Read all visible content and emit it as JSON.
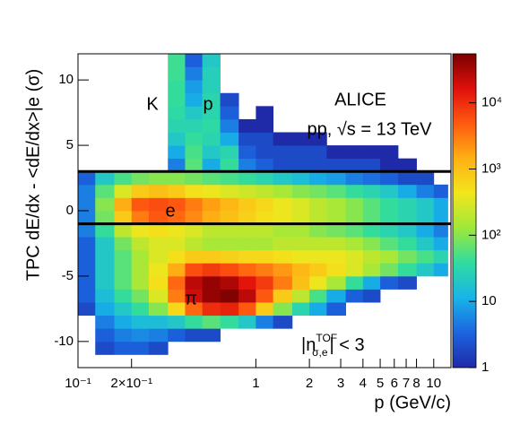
{
  "chart_data": {
    "type": "heatmap",
    "xlabel": "p (GeV/c)",
    "ylabel": "TPC dE/dx - <dE/dx>|e (σ)",
    "xscale": "log",
    "xlim": [
      0.1,
      12.5
    ],
    "xticks": [
      {
        "value": 0.1,
        "label": "10⁻¹"
      },
      {
        "value": 0.2,
        "label": "2×10⁻¹"
      },
      1,
      2,
      3,
      4,
      5,
      6,
      7,
      8,
      10
    ],
    "ylim": [
      -12,
      12
    ],
    "yticks": [
      -10,
      -5,
      0,
      5,
      10
    ],
    "zscale": "log",
    "zlim": [
      1,
      55000
    ],
    "zticks": [
      1,
      10,
      {
        "value": 100,
        "label": "10²"
      },
      {
        "value": 1000,
        "label": "10³"
      },
      {
        "value": 10000,
        "label": "10⁴"
      }
    ],
    "colorscale": [
      "#1f2aa8",
      "#1c64e0",
      "#18b4e8",
      "#2fdca0",
      "#9ee83a",
      "#f2e61c",
      "#ffb014",
      "#ff5a10",
      "#e0100c",
      "#7a0000"
    ],
    "hlines": [
      3,
      -1
    ],
    "annotations": {
      "experiment": "ALICE",
      "system": "pp, √s = 13 TeV",
      "kaon": "K",
      "proton": "p",
      "electron": "e",
      "pion": "π",
      "tof_cut": [
        "|n",
        "TOF",
        "σ,e",
        "| < 3"
      ]
    },
    "xbins": [
      0.1,
      0.125,
      0.16,
      0.2,
      0.25,
      0.32,
      0.4,
      0.5,
      0.63,
      0.8,
      1,
      1.25,
      1.6,
      2,
      2.5,
      3.2,
      4,
      5,
      6.3,
      8,
      10,
      12
    ],
    "ybins": [
      -12,
      -11,
      -10,
      -9,
      -8,
      -7,
      -6,
      -5,
      -4,
      -3,
      -2,
      -1,
      0,
      1,
      2,
      3,
      4,
      5,
      6,
      7,
      8,
      9,
      10,
      11,
      12
    ],
    "z": [
      [
        null,
        null,
        null,
        null,
        null,
        null,
        null,
        null,
        null,
        null,
        null,
        null,
        null,
        null,
        null,
        null,
        null,
        null,
        null,
        null,
        null
      ],
      [
        null,
        2,
        3,
        3,
        2,
        null,
        null,
        null,
        null,
        null,
        null,
        null,
        null,
        null,
        null,
        null,
        null,
        null,
        null,
        null,
        null
      ],
      [
        null,
        3,
        5,
        6,
        5,
        3,
        2,
        2,
        null,
        null,
        null,
        null,
        null,
        null,
        null,
        null,
        null,
        null,
        null,
        null,
        null
      ],
      [
        null,
        5,
        10,
        15,
        15,
        20,
        40,
        60,
        40,
        20,
        5,
        2,
        null,
        null,
        null,
        null,
        null,
        null,
        null,
        null,
        null
      ],
      [
        2,
        10,
        20,
        40,
        100,
        600,
        4000,
        10000,
        12000,
        5000,
        800,
        100,
        30,
        10,
        3,
        null,
        null,
        null,
        null,
        null,
        null
      ],
      [
        3,
        15,
        40,
        80,
        300,
        3000,
        20000,
        40000,
        50000,
        25000,
        5000,
        800,
        200,
        50,
        10,
        3,
        2,
        null,
        null,
        null,
        null
      ],
      [
        3,
        20,
        60,
        150,
        500,
        4000,
        25000,
        40000,
        30000,
        15000,
        8000,
        3000,
        1000,
        400,
        150,
        40,
        10,
        3,
        2,
        null,
        null
      ],
      [
        3,
        20,
        60,
        150,
        400,
        1500,
        6000,
        8000,
        6000,
        4000,
        3000,
        2000,
        1200,
        800,
        500,
        300,
        150,
        80,
        40,
        20,
        10
      ],
      [
        3,
        20,
        60,
        150,
        300,
        500,
        800,
        800,
        700,
        600,
        600,
        500,
        400,
        400,
        400,
        300,
        200,
        150,
        80,
        50,
        30
      ],
      [
        3,
        20,
        80,
        200,
        300,
        300,
        200,
        150,
        150,
        150,
        150,
        200,
        200,
        200,
        200,
        150,
        100,
        60,
        40,
        20,
        10
      ],
      [
        5,
        40,
        200,
        400,
        500,
        400,
        300,
        200,
        200,
        200,
        200,
        150,
        150,
        100,
        80,
        60,
        40,
        30,
        20,
        10,
        5
      ],
      [
        5,
        80,
        800,
        3000,
        5000,
        4000,
        2500,
        1500,
        1000,
        700,
        500,
        400,
        300,
        200,
        150,
        100,
        60,
        40,
        30,
        20,
        10
      ],
      [
        5,
        100,
        1500,
        5000,
        6000,
        5000,
        3000,
        1800,
        1200,
        800,
        600,
        400,
        300,
        200,
        150,
        100,
        60,
        40,
        30,
        20,
        10
      ],
      [
        5,
        60,
        300,
        800,
        1000,
        800,
        500,
        400,
        300,
        250,
        200,
        150,
        100,
        80,
        60,
        40,
        30,
        20,
        10,
        5,
        3
      ],
      [
        3,
        20,
        50,
        80,
        100,
        100,
        80,
        60,
        50,
        40,
        30,
        20,
        15,
        10,
        8,
        5,
        4,
        3,
        2,
        2,
        null
      ],
      [
        null,
        null,
        null,
        null,
        null,
        5,
        60,
        10,
        40,
        5,
        3,
        2,
        2,
        2,
        2,
        2,
        2,
        1,
        1,
        null,
        null
      ],
      [
        null,
        null,
        null,
        null,
        null,
        10,
        50,
        20,
        30,
        3,
        2,
        2,
        2,
        2,
        1,
        1,
        1,
        1,
        null,
        null,
        null
      ],
      [
        null,
        null,
        null,
        null,
        null,
        20,
        40,
        30,
        10,
        2,
        2,
        1,
        1,
        1,
        null,
        null,
        null,
        null,
        null,
        null,
        null
      ],
      [
        null,
        null,
        null,
        null,
        null,
        30,
        30,
        35,
        5,
        1,
        1,
        null,
        null,
        null,
        null,
        null,
        null,
        null,
        null,
        null,
        null
      ],
      [
        null,
        null,
        null,
        null,
        null,
        35,
        20,
        30,
        3,
        null,
        1,
        null,
        null,
        null,
        null,
        null,
        null,
        null,
        null,
        null,
        null
      ],
      [
        null,
        null,
        null,
        null,
        null,
        40,
        10,
        30,
        2,
        null,
        null,
        null,
        null,
        null,
        null,
        null,
        null,
        null,
        null,
        null,
        null
      ],
      [
        null,
        null,
        null,
        null,
        null,
        40,
        8,
        25,
        null,
        null,
        null,
        null,
        null,
        null,
        null,
        null,
        null,
        null,
        null,
        null,
        null
      ],
      [
        null,
        null,
        null,
        null,
        null,
        45,
        5,
        25,
        null,
        null,
        null,
        null,
        null,
        null,
        null,
        null,
        null,
        null,
        null,
        null,
        null
      ],
      [
        null,
        null,
        null,
        null,
        null,
        45,
        3,
        20,
        null,
        null,
        null,
        null,
        null,
        null,
        null,
        null,
        null,
        null,
        null,
        null,
        null
      ]
    ]
  }
}
